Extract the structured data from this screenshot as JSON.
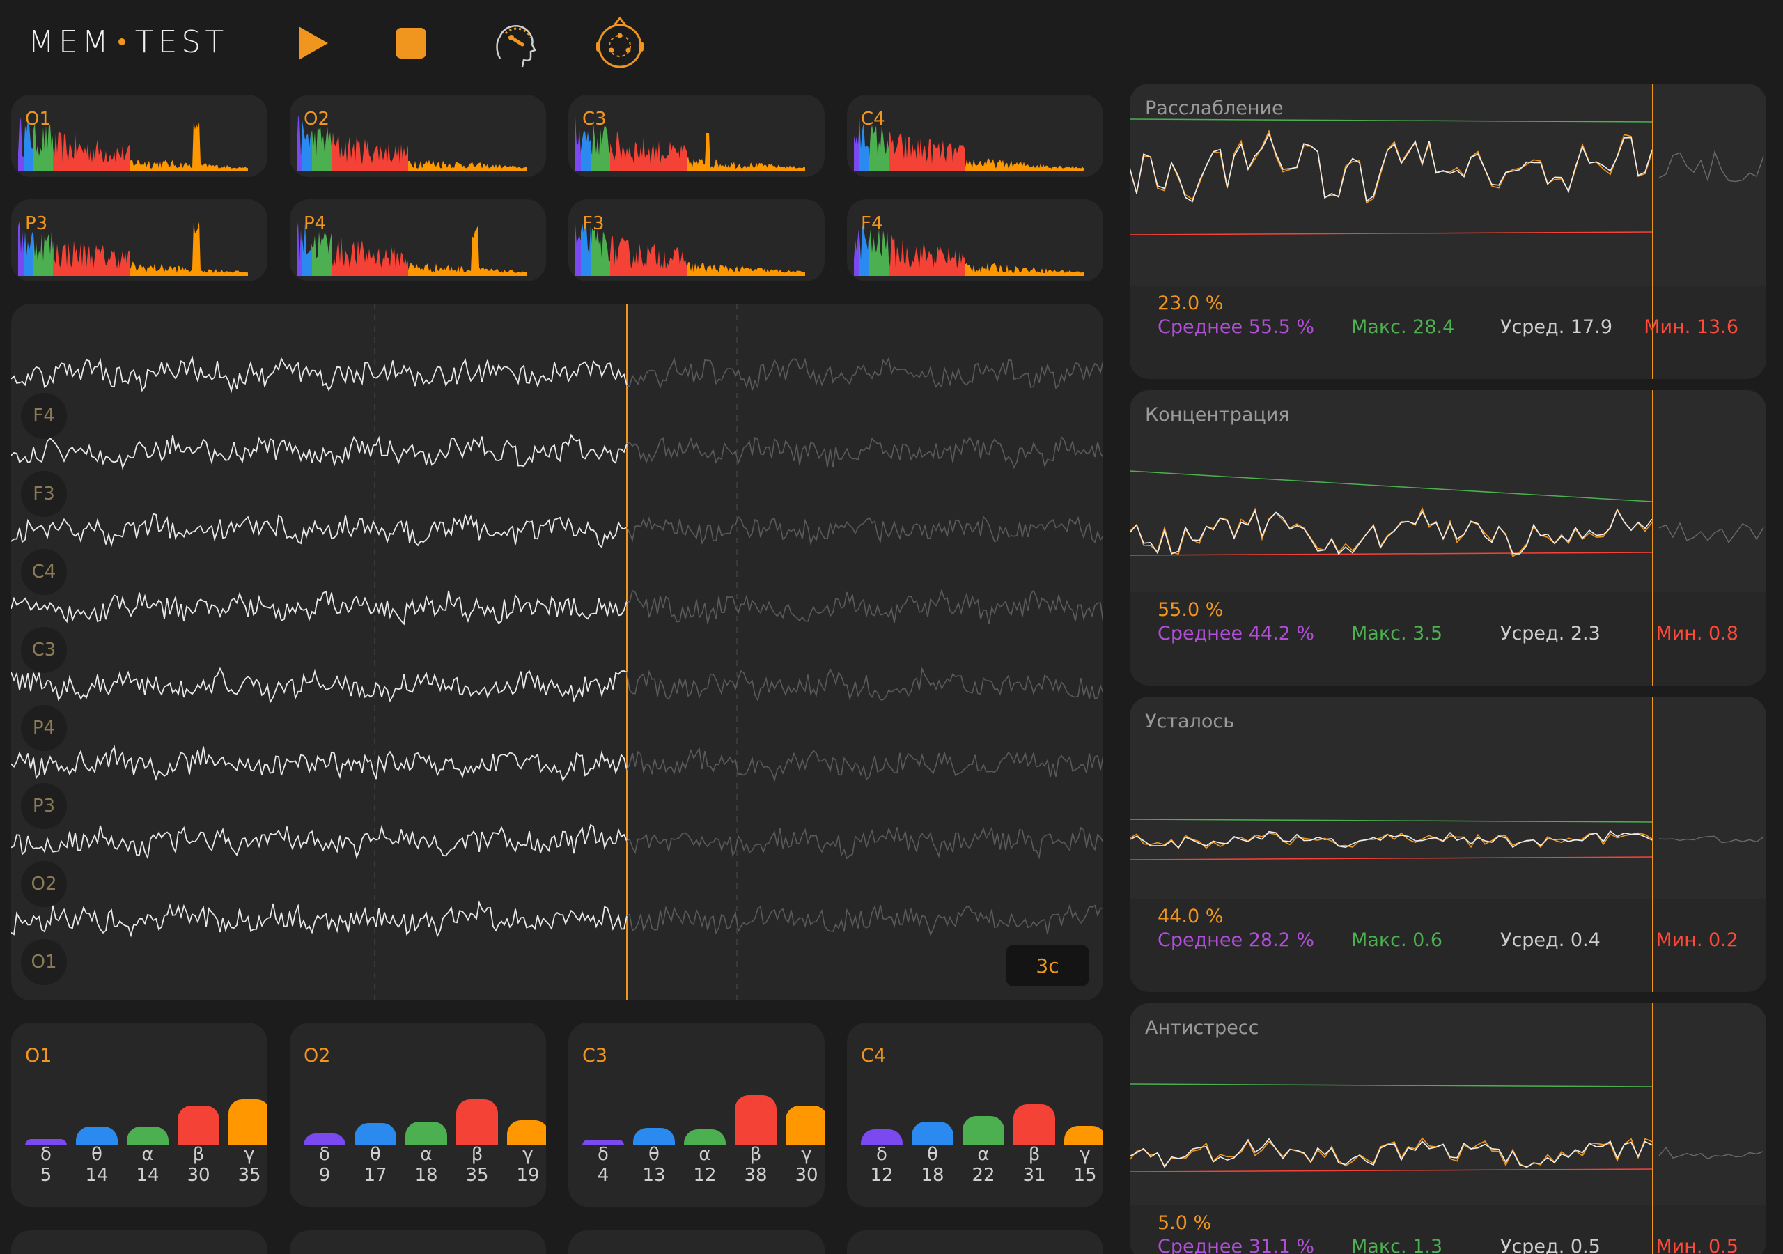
{
  "app": {
    "logo_left": "MEM",
    "logo_right": "TEST",
    "colors": {
      "accent": "#f0961e",
      "delta": "#7a4af0",
      "theta": "#2a8af0",
      "alpha": "#4caf50",
      "beta": "#f44336",
      "gamma": "#ff9800"
    }
  },
  "toolbar": {
    "icons": [
      "play-icon",
      "stop-icon",
      "head-calibration-icon",
      "head-electrodes-icon"
    ]
  },
  "spectra": [
    {
      "label": "O1"
    },
    {
      "label": "O2"
    },
    {
      "label": "C3"
    },
    {
      "label": "C4"
    },
    {
      "label": "P3"
    },
    {
      "label": "P4"
    },
    {
      "label": "F3"
    },
    {
      "label": "F4"
    }
  ],
  "eeg": {
    "channels": [
      "F4",
      "F3",
      "C4",
      "C3",
      "P4",
      "P3",
      "O2",
      "O1"
    ],
    "scale_label": "3с"
  },
  "metrics": [
    {
      "title": "Расслабление",
      "percent": "23.0 %",
      "avg": "Среднее 55.5 %",
      "max": "Макс. 28.4",
      "mean": "Усред. 17.9",
      "min": "Мин. 13.6"
    },
    {
      "title": "Концентрация",
      "percent": "55.0 %",
      "avg": "Среднее 44.2 %",
      "max": "Макс. 3.5",
      "mean": "Усред. 2.3",
      "min": "Мин. 0.8"
    },
    {
      "title": "Усталось",
      "percent": "44.0 %",
      "avg": "Среднее 28.2 %",
      "max": "Макс. 0.6",
      "mean": "Усред. 0.4",
      "min": "Мин. 0.2"
    },
    {
      "title": "Антистресс",
      "percent": "5.0 %",
      "avg": "Среднее 31.1 %",
      "max": "Макс. 1.3",
      "mean": "Усред. 0.5",
      "min": "Мин. 0.5"
    }
  ],
  "bands": [
    {
      "label": "O1",
      "symbols": [
        "δ",
        "θ",
        "α",
        "β",
        "γ"
      ],
      "values": [
        5,
        14,
        14,
        30,
        35
      ]
    },
    {
      "label": "O2",
      "symbols": [
        "δ",
        "θ",
        "α",
        "β",
        "γ"
      ],
      "values": [
        9,
        17,
        18,
        35,
        19
      ]
    },
    {
      "label": "C3",
      "symbols": [
        "δ",
        "θ",
        "α",
        "β",
        "γ"
      ],
      "values": [
        4,
        13,
        12,
        38,
        30
      ]
    },
    {
      "label": "C4",
      "symbols": [
        "δ",
        "θ",
        "α",
        "β",
        "γ"
      ],
      "values": [
        12,
        18,
        22,
        31,
        15
      ]
    }
  ]
}
